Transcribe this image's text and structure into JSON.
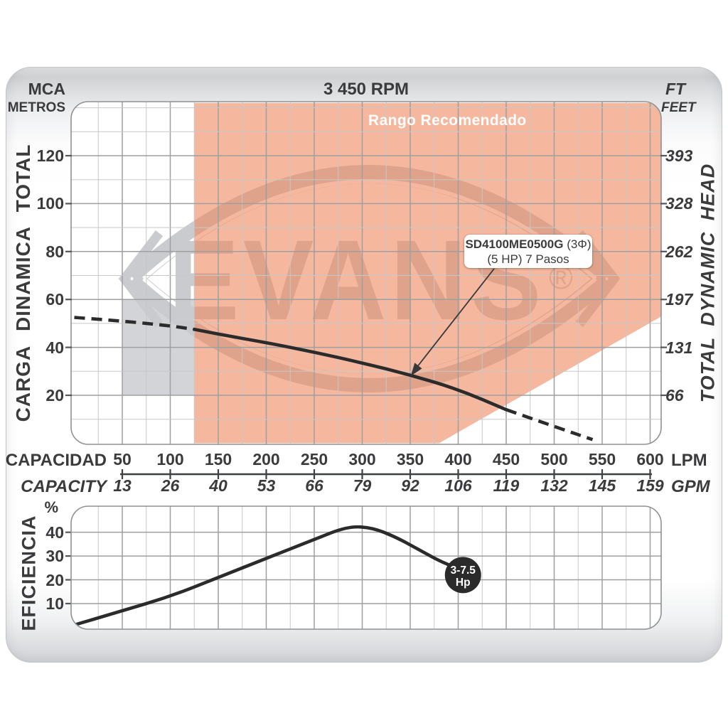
{
  "header": {
    "left_unit_line1": "MCA",
    "left_unit_line2": "METROS",
    "title": "3 450 RPM",
    "right_unit_line1": "FT",
    "right_unit_line2": "FEET"
  },
  "axis_titles": {
    "left": "CARGA DINAMICA TOTAL",
    "right": "TOTAL DYNAMIC HEAD",
    "efficiency": "EFICIENCIA",
    "efficiency_unit": "%"
  },
  "x_axis": {
    "row1_label": "CAPACIDAD",
    "row2_label": "CAPACITY",
    "row1_unit": "LPM",
    "row2_unit": "GPM",
    "lpm_ticks": [
      50,
      100,
      150,
      200,
      250,
      300,
      350,
      400,
      450,
      500,
      550,
      600
    ],
    "gpm_ticks": [
      13,
      26,
      40,
      53,
      66,
      79,
      92,
      106,
      119,
      132,
      145,
      159
    ]
  },
  "y_axis": {
    "metros_ticks": [
      120,
      100,
      80,
      60,
      40,
      20
    ],
    "feet_ticks": [
      393,
      328,
      262,
      197,
      131,
      66
    ]
  },
  "efficiency_axis": {
    "pct_ticks": [
      40,
      30,
      20,
      10
    ]
  },
  "recommended_range_label": "Rango Recomendado",
  "pump_label": {
    "model": "SD4100ME0500G",
    "phase": "(3Φ)",
    "line2": "(5 HP) 7 Pasos"
  },
  "hp_badge": {
    "line1": "3-7.5",
    "line2": "Hp"
  },
  "watermark": {
    "text": "EVANS",
    "reg": "®"
  },
  "colors": {
    "salmon": "#F5B79E",
    "salmon_watermark": "#DFA38B",
    "gray_zone": "#D3D4D7",
    "gray_watermark": "#C9CBCE",
    "grid_minor": "#C8C8C8",
    "grid_major": "#9E9FA1",
    "plot_border": "#8F9193",
    "curve": "#2B2B2B",
    "text": "#3B3B3D",
    "axis_line": "#3F4042",
    "badge_bg": "#2B2B2B",
    "badge_text": "#FFFFFF"
  },
  "chart_data": [
    {
      "type": "line",
      "name": "head-capacity-curve",
      "title": "3 450 RPM",
      "xlabel": "CAPACIDAD (LPM) / CAPACITY (GPM)",
      "ylabel": "CARGA DINAMICA TOTAL (MCA METROS) / TOTAL DYNAMIC HEAD (FT FEET)",
      "x_range_lpm": [
        0,
        615
      ],
      "y_range_m": [
        0,
        142
      ],
      "grid": true,
      "series": [
        {
          "name": "SD4100ME0500G (3Φ) (5 HP) 7 Pasos",
          "points_lpm_m": [
            [
              0,
              52.5
            ],
            [
              50,
              51
            ],
            [
              100,
              49
            ],
            [
              125,
              47.5
            ],
            [
              150,
              45.5
            ],
            [
              200,
              42
            ],
            [
              250,
              38
            ],
            [
              300,
              33.5
            ],
            [
              350,
              28.5
            ],
            [
              400,
              22.5
            ],
            [
              450,
              14
            ],
            [
              500,
              7
            ],
            [
              540,
              1.5
            ]
          ],
          "solid_between_lpm": [
            125,
            450
          ],
          "dashed_outside": true
        }
      ],
      "regions": [
        {
          "name": "rango-recomendado",
          "label": "Rango Recomendado",
          "color": "#F5B79E",
          "polygon_lpm_m": [
            [
              125,
              142
            ],
            [
              615,
              142
            ],
            [
              612,
              53
            ],
            [
              380,
              0
            ],
            [
              125,
              0
            ]
          ]
        },
        {
          "name": "zona-gris",
          "color": "#D3D4D7",
          "rect_lpm_m": [
            [
              50,
              20
            ],
            [
              125,
              60
            ]
          ]
        }
      ],
      "annotation": {
        "text": "SD4100ME0500G (3Φ) (5 HP) 7 Pasos",
        "target_lpm_m": [
          350,
          28.5
        ]
      }
    },
    {
      "type": "line",
      "name": "efficiency-curve",
      "ylabel": "EFICIENCIA %",
      "y_range_pct": [
        0,
        51
      ],
      "grid": true,
      "series": [
        {
          "name": "EFICIENCIA",
          "points_lpm_pct": [
            [
              0,
              1
            ],
            [
              50,
              7
            ],
            [
              100,
              13
            ],
            [
              150,
              21
            ],
            [
              200,
              29
            ],
            [
              250,
              37
            ],
            [
              285,
              42.5
            ],
            [
              310,
              42
            ],
            [
              335,
              38
            ],
            [
              360,
              32.5
            ],
            [
              380,
              28
            ],
            [
              398,
              25
            ]
          ]
        }
      ],
      "end_marker": {
        "label": "3-7.5 Hp",
        "center_lpm_pct": [
          405,
          22
        ]
      }
    }
  ]
}
